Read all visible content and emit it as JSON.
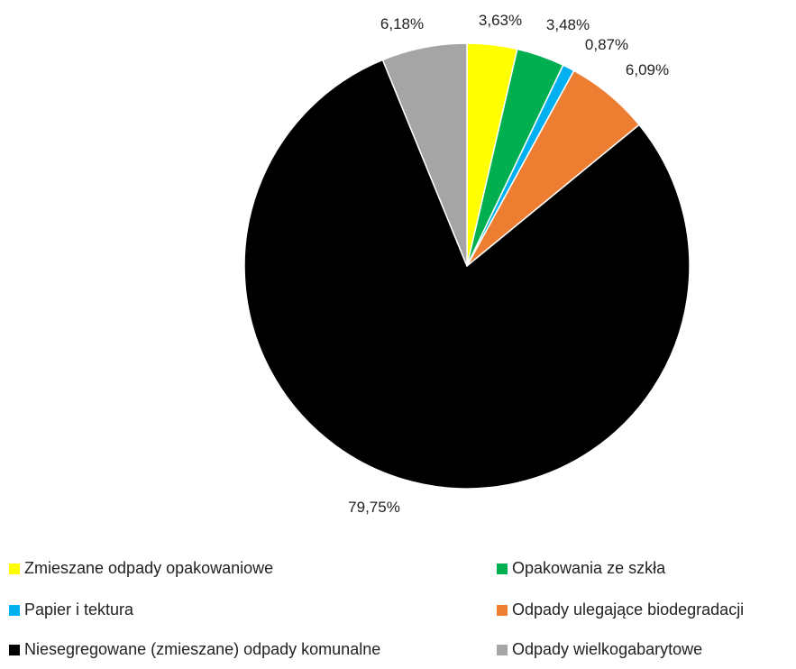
{
  "chart_data": {
    "type": "pie",
    "title": "",
    "start_angle_deg": 0,
    "direction": "clockwise",
    "legend_position": "bottom",
    "slices": [
      {
        "label": "Zmieszane odpady opakowaniowe",
        "value": 3.63,
        "display": "3,63%",
        "color": "#FFFF00"
      },
      {
        "label": "Opakowania ze szkła",
        "value": 3.48,
        "display": "3,48%",
        "color": "#00B050"
      },
      {
        "label": "Papier i tektura",
        "value": 0.87,
        "display": "0,87%",
        "color": "#00B0F0"
      },
      {
        "label": "Odpady ulegające biodegradacji",
        "value": 6.09,
        "display": "6,09%",
        "color": "#ED7D31"
      },
      {
        "label": "Niesegregowane (zmieszane) odpady komunalne",
        "value": 79.75,
        "display": "79,75%",
        "color": "#000000"
      },
      {
        "label": "Odpady wielkogabarytowe",
        "value": 6.18,
        "display": "6,18%",
        "color": "#A5A5A5"
      }
    ]
  }
}
